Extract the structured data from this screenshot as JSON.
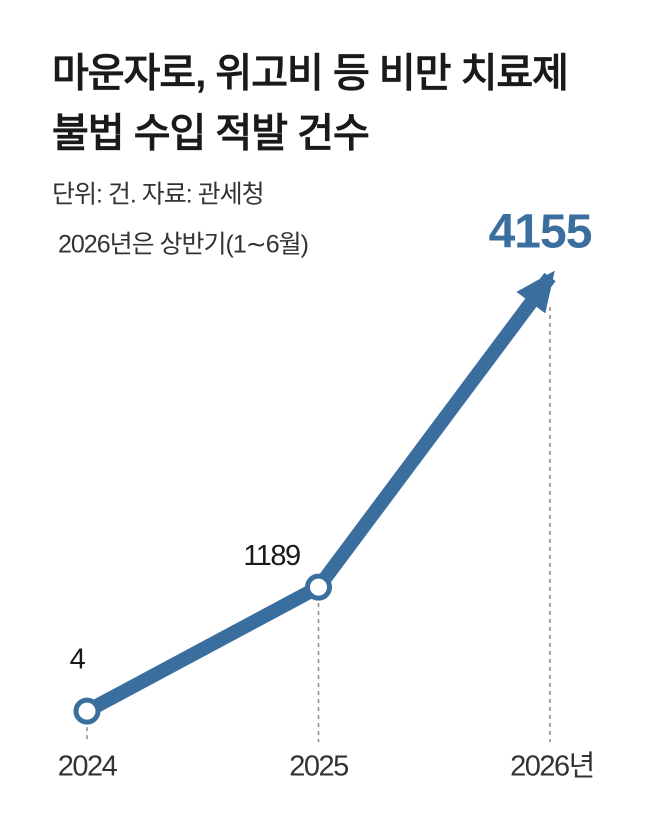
{
  "chart_data": {
    "type": "line",
    "title": [
      "마운자로, 위고비 등 비만 치료제",
      "불법 수입 적발 건수"
    ],
    "notes": [
      "단위: 건. 자료: 관세청",
      "2026년은 상반기(1∼6월)"
    ],
    "categories": [
      "2024",
      "2025",
      "2026년"
    ],
    "values": [
      4,
      1189,
      4155
    ],
    "color": "#3a6e9e"
  }
}
